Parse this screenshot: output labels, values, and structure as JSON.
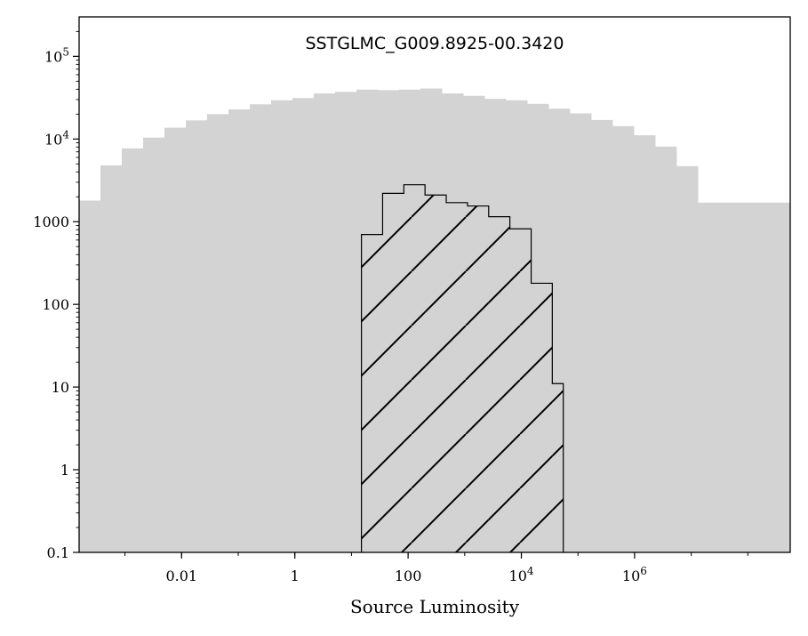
{
  "chart_data": {
    "type": "bar",
    "title": "SSTGLMC_G009.8925-00.3420",
    "xlabel": "Source Luminosity",
    "ylabel": "",
    "xscale": "log",
    "yscale": "log",
    "xlim": [
      0.000155,
      560000000
    ],
    "ylim": [
      0.1,
      300000
    ],
    "x_tick_values": [
      0.01,
      1,
      100,
      10000,
      1000000
    ],
    "x_tick_labels": [
      {
        "base": "0.01",
        "exp": ""
      },
      {
        "base": "1",
        "exp": ""
      },
      {
        "base": "100",
        "exp": ""
      },
      {
        "base": "10",
        "exp": "4"
      },
      {
        "base": "10",
        "exp": "6"
      }
    ],
    "y_tick_values": [
      0.1,
      1,
      10,
      100,
      1000,
      10000,
      100000
    ],
    "y_tick_labels": [
      {
        "base": "0.1",
        "exp": ""
      },
      {
        "base": "1",
        "exp": ""
      },
      {
        "base": "10",
        "exp": ""
      },
      {
        "base": "100",
        "exp": ""
      },
      {
        "base": "1000",
        "exp": ""
      },
      {
        "base": "10",
        "exp": "4"
      },
      {
        "base": "10",
        "exp": "5"
      }
    ],
    "series": [
      {
        "style": "filled",
        "color": "#d3d3d3",
        "bin_edges": [
          0.000155,
          0.000369,
          0.000879,
          0.00209,
          0.00498,
          0.0119,
          0.0282,
          0.0672,
          0.16,
          0.381,
          0.906,
          2.16,
          5.14,
          12.2,
          29.1,
          69.2,
          165,
          392,
          934,
          2220,
          5290,
          12600,
          30000,
          71300,
          170000,
          404000,
          962000,
          2290000,
          5450000,
          13000000,
          30900000,
          73500000,
          175000000,
          417000000,
          560000000
        ],
        "counts": [
          1800,
          4800,
          7700,
          10400,
          13700,
          16800,
          20000,
          22800,
          26300,
          29400,
          31300,
          35600,
          37200,
          39600,
          39000,
          39600,
          40800,
          35600,
          33300,
          30600,
          29400,
          26600,
          23300,
          20400,
          17000,
          14300,
          11100,
          8100,
          4700,
          1700,
          1700,
          1700,
          1700,
          1700
        ]
      },
      {
        "style": "hatched",
        "color": "#000000",
        "bin_edges": [
          15.0,
          35.5,
          84.1,
          199,
          472,
          1120,
          2650,
          6270,
          14900,
          35200,
          55000
        ],
        "counts": [
          700,
          2200,
          2800,
          2100,
          1700,
          1550,
          1150,
          820,
          180,
          11
        ]
      }
    ]
  }
}
